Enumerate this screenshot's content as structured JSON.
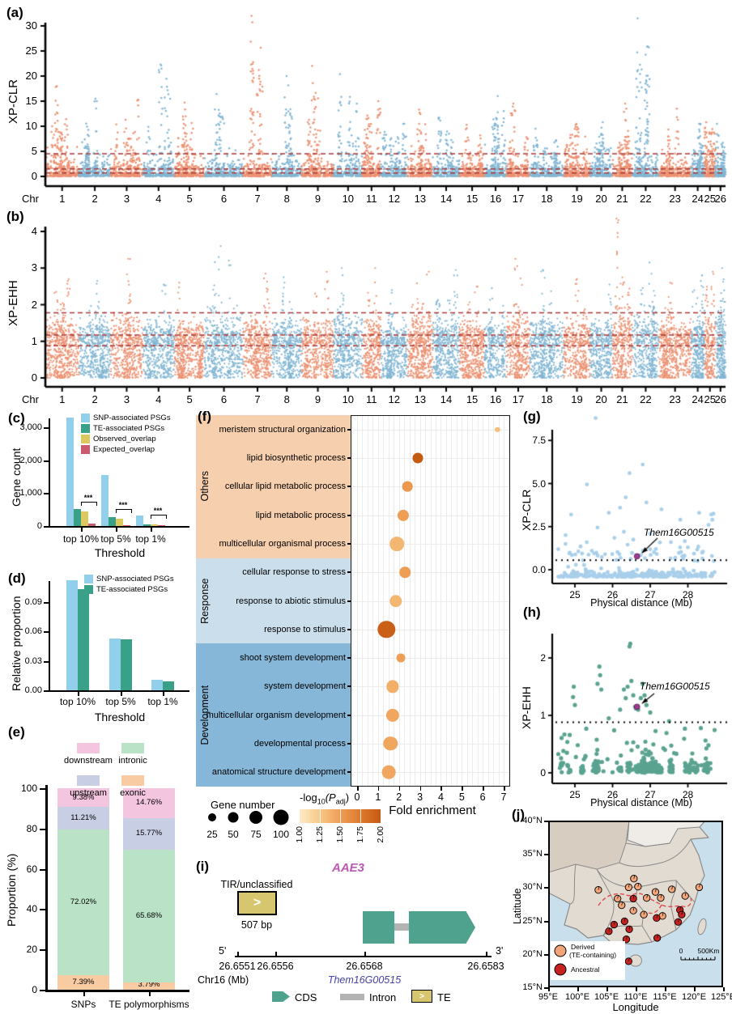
{
  "figure": {
    "panel_labels": {
      "a": "(a)",
      "b": "(b)",
      "c": "(c)",
      "d": "(d)",
      "e": "(e)",
      "f": "(f)",
      "g": "(g)",
      "h": "(h)",
      "i": "(i)",
      "j": "(j)"
    }
  },
  "chart_data": [
    {
      "id": "a",
      "type": "scatter",
      "subtype": "manhattan",
      "ylabel": "XP-CLR",
      "xlabel": "Chr",
      "yticks": [
        0,
        5,
        10,
        15,
        20,
        25,
        30
      ],
      "ylim": [
        0,
        33
      ],
      "chromosomes": [
        1,
        2,
        3,
        4,
        5,
        6,
        7,
        8,
        9,
        10,
        11,
        12,
        13,
        14,
        15,
        16,
        17,
        18,
        19,
        20,
        21,
        22,
        23,
        24,
        25,
        26
      ],
      "chrom_widths": [
        1.0,
        0.95,
        0.95,
        0.95,
        0.9,
        1.15,
        0.85,
        0.9,
        0.95,
        0.85,
        0.55,
        0.8,
        0.75,
        0.8,
        0.75,
        0.65,
        0.7,
        1.0,
        0.8,
        0.65,
        0.6,
        0.8,
        0.95,
        0.4,
        0.33,
        0.3
      ],
      "chrom_peaks": [
        18,
        15.5,
        15.3,
        22.3,
        14.7,
        16.4,
        32,
        20,
        22,
        20.4,
        15,
        10.5,
        13.3,
        11.7,
        10.3,
        16,
        14.5,
        9.5,
        10.5,
        10.8,
        14.5,
        31.5,
        13.5,
        10.5,
        10.8,
        10.5
      ],
      "thresholds": [
        4.5,
        1.5,
        0.7
      ],
      "threshold_color": "#A63737",
      "colors": {
        "odd": "#EC9272",
        "even": "#82B6D3"
      }
    },
    {
      "id": "b",
      "type": "scatter",
      "subtype": "manhattan",
      "ylabel": "XP-EHH",
      "xlabel": "Chr",
      "yticks": [
        0,
        1,
        2,
        3,
        4
      ],
      "ylim": [
        0,
        4.5
      ],
      "chromosomes": [
        1,
        2,
        3,
        4,
        5,
        6,
        7,
        8,
        9,
        10,
        11,
        12,
        13,
        14,
        15,
        16,
        17,
        18,
        19,
        20,
        21,
        22,
        23,
        24,
        25,
        26
      ],
      "chrom_widths": [
        1.0,
        0.95,
        0.95,
        0.95,
        0.9,
        1.15,
        0.85,
        0.9,
        0.95,
        0.85,
        0.55,
        0.8,
        0.75,
        0.8,
        0.75,
        0.65,
        0.7,
        1.0,
        0.8,
        0.65,
        0.6,
        0.8,
        0.95,
        0.4,
        0.33,
        0.3
      ],
      "chrom_peaks": [
        2.7,
        2.65,
        3.25,
        2.55,
        2.6,
        3.6,
        2.85,
        2.75,
        2.9,
        3.0,
        3.0,
        2.4,
        2.9,
        2.95,
        2.5,
        2.45,
        3.25,
        2.95,
        2.7,
        2.55,
        4.35,
        3.15,
        2.6,
        2.8,
        2.9,
        3.0
      ],
      "thresholds": [
        1.78,
        1.17,
        0.88
      ],
      "threshold_color": "#A63737",
      "colors": {
        "odd": "#EC9272",
        "even": "#82B6D3"
      }
    },
    {
      "id": "c",
      "type": "bar",
      "ylabel": "Gene count",
      "xlabel": "Threshold",
      "categories": [
        "top 10%",
        "top 5%",
        "top 1%"
      ],
      "yticks": [
        "0",
        "1,000",
        "2,000",
        "3,000"
      ],
      "ytick_values": [
        0,
        1000,
        2000,
        3000
      ],
      "ymax": 3400,
      "series": [
        {
          "name": "SNP-associated PSGs",
          "color": "#92CFEA",
          "values": [
            3300,
            1550,
            320
          ]
        },
        {
          "name": "TE-associated PSGs",
          "color": "#3AA189",
          "values": [
            510,
            270,
            55
          ]
        },
        {
          "name": "Observed_overlap",
          "color": "#DDC75F",
          "values": [
            450,
            220,
            50
          ]
        },
        {
          "name": "Expected_overlap",
          "color": "#CB5A6F",
          "values": [
            70,
            30,
            12
          ]
        }
      ],
      "significance": [
        "***",
        "***",
        "***"
      ]
    },
    {
      "id": "d",
      "type": "bar",
      "ylabel": "Relative proportion",
      "xlabel": "Threshold",
      "categories": [
        "top 10%",
        "top 5%",
        "top 1%"
      ],
      "yticks": [
        "0.00",
        "0.03",
        "0.06",
        "0.09"
      ],
      "ytick_values": [
        0,
        0.03,
        0.06,
        0.09
      ],
      "ymax": 0.118,
      "series": [
        {
          "name": "SNP-associated PSGs",
          "color": "#92CFEA",
          "values": [
            0.112,
            0.053,
            0.011
          ]
        },
        {
          "name": "TE-associated PSGs",
          "color": "#3AA189",
          "values": [
            0.103,
            0.052,
            0.009
          ]
        }
      ]
    },
    {
      "id": "e",
      "type": "bar",
      "stacked": true,
      "ylabel": "Proportion (%)",
      "categories": [
        "SNPs",
        "TE polymorphisms"
      ],
      "yticks": [
        0,
        20,
        40,
        60,
        80,
        100
      ],
      "series": [
        {
          "name": "exonic",
          "color": "#F8CBA2",
          "values": [
            7.39,
            3.79
          ]
        },
        {
          "name": "intronic",
          "color": "#BAE2C6",
          "values": [
            72.02,
            65.68
          ]
        },
        {
          "name": "upstream",
          "color": "#C8CEE3",
          "values": [
            11.21,
            15.77
          ]
        },
        {
          "name": "downstream",
          "color": "#F3C5DE",
          "values": [
            9.38,
            14.76
          ]
        }
      ],
      "legend_order": [
        "downstream",
        "intronic",
        "upstream",
        "exonic"
      ],
      "labels": [
        [
          "7.39%",
          "72.02%",
          "11.21%",
          "9.38%"
        ],
        [
          "3.79%",
          "65.68%",
          "15.77%",
          "14.76%"
        ]
      ]
    },
    {
      "id": "f",
      "type": "scatter",
      "subtype": "dotplot",
      "xlabel": "Fold enrichment",
      "xticks": [
        0,
        1,
        2,
        3,
        4,
        5,
        6,
        7
      ],
      "groups": [
        {
          "name": "Others",
          "color": "#F6CFAE",
          "rows": 5
        },
        {
          "name": "Response",
          "color": "#CBDEEB",
          "rows": 3
        },
        {
          "name": "Development",
          "color": "#87B7D8",
          "rows": 5
        }
      ],
      "terms": [
        {
          "label": "meristem structural organization",
          "fold": 6.7,
          "genes": 10,
          "logp": 1.3
        },
        {
          "label": "lipid biosynthetic process",
          "fold": 2.9,
          "genes": 42,
          "logp": 2.0
        },
        {
          "label": "cellular lipid metabolic process",
          "fold": 2.4,
          "genes": 40,
          "logp": 1.55
        },
        {
          "label": "lipid metabolic process",
          "fold": 2.2,
          "genes": 50,
          "logp": 1.5
        },
        {
          "label": "multicellular organismal process",
          "fold": 1.9,
          "genes": 78,
          "logp": 1.35
        },
        {
          "label": "cellular response to stress",
          "fold": 2.3,
          "genes": 46,
          "logp": 1.5
        },
        {
          "label": "response to abiotic stimulus",
          "fold": 1.85,
          "genes": 60,
          "logp": 1.35
        },
        {
          "label": "response to stimulus",
          "fold": 1.4,
          "genes": 115,
          "logp": 1.95
        },
        {
          "label": "shoot system development",
          "fold": 2.1,
          "genes": 30,
          "logp": 1.5
        },
        {
          "label": "system development",
          "fold": 1.7,
          "genes": 58,
          "logp": 1.4
        },
        {
          "label": "multicellular organism development",
          "fold": 1.7,
          "genes": 66,
          "logp": 1.45
        },
        {
          "label": "developmental process",
          "fold": 1.6,
          "genes": 76,
          "logp": 1.45
        },
        {
          "label": "anatomical structure development",
          "fold": 1.5,
          "genes": 70,
          "logp": 1.45
        }
      ],
      "size_legend": {
        "title": "Gene number",
        "values": [
          25,
          50,
          75,
          100
        ]
      },
      "color_legend": {
        "title_parts": {
          "prefix": "-log",
          "sub": "10",
          "mid": "(P",
          "sub2": "adj",
          "suffix": ")"
        },
        "ticks": [
          "1.00",
          "1.25",
          "1.50",
          "1.75",
          "2.00"
        ],
        "gradient": [
          "#FDEBC9",
          "#F7C886",
          "#EE9E55",
          "#DD7A2E",
          "#C55A11"
        ]
      }
    },
    {
      "id": "g",
      "type": "scatter",
      "ylabel": "XP-CLR",
      "xlabel": "Physical distance (Mb)",
      "xticks": [
        25,
        26,
        27,
        28
      ],
      "yticks": [
        "0.0",
        "2.5",
        "5.0",
        "7.5"
      ],
      "ytick_values": [
        0,
        2.5,
        5,
        7.5
      ],
      "xlim": [
        24.55,
        28.75
      ],
      "threshold": 0.55,
      "color": "#A9CFEA",
      "highlight": {
        "label": "Them16G00515",
        "x": 26.65,
        "y": 0.78,
        "color": "#A13A93"
      },
      "outliers": [
        [
          25.55,
          8.8
        ],
        [
          26.8,
          6.1
        ],
        [
          26.45,
          5.6
        ],
        [
          25.32,
          4.95
        ],
        [
          26.35,
          4.2
        ],
        [
          26.2,
          3.6
        ],
        [
          26.9,
          3.9
        ],
        [
          25.9,
          3.3
        ],
        [
          24.9,
          3.2
        ],
        [
          27.3,
          3.5
        ],
        [
          28.3,
          3.3
        ],
        [
          28.62,
          3.2
        ],
        [
          28.55,
          2.6
        ],
        [
          27.8,
          2.9
        ],
        [
          25.6,
          2.45
        ],
        [
          26.3,
          2.2
        ],
        [
          27.0,
          2.1
        ],
        [
          26.05,
          1.85
        ],
        [
          26.55,
          1.75
        ],
        [
          27.55,
          1.6
        ],
        [
          24.75,
          1.5
        ],
        [
          25.15,
          1.35
        ],
        [
          26.4,
          1.45
        ],
        [
          28.0,
          1.3
        ],
        [
          27.15,
          1.2
        ],
        [
          25.45,
          1.1
        ],
        [
          28.4,
          1.05
        ],
        [
          24.85,
          0.95
        ],
        [
          25.8,
          0.9
        ],
        [
          26.75,
          0.85
        ],
        [
          27.9,
          0.8
        ],
        [
          28.65,
          2.9
        ],
        [
          28.68,
          3.25
        ]
      ]
    },
    {
      "id": "h",
      "type": "scatter",
      "ylabel": "XP-EHH",
      "xlabel": "Physical distance (Mb)",
      "xticks": [
        25,
        26,
        27,
        28
      ],
      "yticks": [
        "0",
        "1",
        "2"
      ],
      "ytick_values": [
        0,
        1,
        2
      ],
      "xlim": [
        24.55,
        28.75
      ],
      "threshold": 0.88,
      "color": "#5BA391",
      "highlight": {
        "label": "Them16G00515",
        "x": 26.65,
        "y": 1.15,
        "color": "#A13A93"
      },
      "high_points": [
        [
          24.95,
          1.32
        ],
        [
          24.97,
          1.5
        ],
        [
          25.0,
          1.18
        ],
        [
          25.6,
          1.55
        ],
        [
          25.65,
          1.85
        ],
        [
          25.67,
          1.7
        ],
        [
          25.7,
          1.45
        ],
        [
          26.3,
          1.45
        ],
        [
          26.35,
          1.3
        ],
        [
          26.4,
          1.5
        ],
        [
          26.45,
          2.2
        ],
        [
          26.47,
          2.25
        ],
        [
          26.5,
          1.6
        ],
        [
          26.55,
          1.35
        ],
        [
          26.6,
          1.15
        ],
        [
          26.62,
          1.12
        ],
        [
          26.68,
          1.1
        ],
        [
          26.75,
          1.3
        ],
        [
          26.8,
          1.55
        ],
        [
          26.85,
          1.35
        ],
        [
          26.9,
          1.18
        ],
        [
          27.0,
          1.05
        ],
        [
          26.2,
          1.1
        ],
        [
          25.9,
          0.95
        ],
        [
          27.5,
          0.9
        ]
      ]
    },
    {
      "id": "i",
      "type": "gene-model",
      "gene": "AAE3",
      "gene_id": "Them16G00515",
      "te_label": "TIR/unclassified",
      "te_size": "507 bp",
      "te_arrow": ">",
      "axis": {
        "start_label": "5'",
        "end_label": "3'",
        "ticks": [
          "26.6551",
          "26.6556",
          "26.6568",
          "26.6583"
        ],
        "chrom": "Chr16 (Mb)"
      },
      "legend": [
        {
          "label": "CDS"
        },
        {
          "label": "Intron"
        },
        {
          "label": "TE"
        }
      ],
      "colors": {
        "cds": "#4EA28E",
        "intron": "#B3B3B3",
        "te": "#D6C76F",
        "gene_name": "#BC58B2",
        "gene_id_color": "#4343A8"
      }
    },
    {
      "id": "j",
      "type": "map",
      "xlabel": "Longitude",
      "ylabel": "Latitude",
      "lon_ticks": [
        "95°E",
        "100°E",
        "105°E",
        "110°E",
        "115°E",
        "120°E",
        "125°E"
      ],
      "lon_values": [
        95,
        100,
        105,
        110,
        115,
        120,
        125
      ],
      "lat_ticks": [
        "15°N",
        "20°N",
        "25°N",
        "30°N",
        "35°N",
        "40°N"
      ],
      "lat_values": [
        15,
        20,
        25,
        30,
        35,
        40
      ],
      "legend": [
        {
          "label": "Derived",
          "label2": "(TE-containing)",
          "color": "#F2A579"
        },
        {
          "label": "Ancestral",
          "color": "#C62320"
        }
      ],
      "scale": {
        "zero": "0",
        "label": "500Km"
      },
      "points": [
        {
          "lon": 103.6,
          "lat": 29.6,
          "type": "derived"
        },
        {
          "lon": 109.7,
          "lat": 31.3,
          "type": "derived"
        },
        {
          "lon": 108.8,
          "lat": 30.0,
          "type": "derived"
        },
        {
          "lon": 110.4,
          "lat": 30.1,
          "type": "derived"
        },
        {
          "lon": 113.4,
          "lat": 29.3,
          "type": "derived"
        },
        {
          "lon": 116.2,
          "lat": 29.7,
          "type": "derived"
        },
        {
          "lon": 120.9,
          "lat": 30.0,
          "type": "derived"
        },
        {
          "lon": 106.9,
          "lat": 28.3,
          "type": "derived"
        },
        {
          "lon": 111.9,
          "lat": 28.4,
          "type": "derived"
        },
        {
          "lon": 114.3,
          "lat": 28.4,
          "type": "derived"
        },
        {
          "lon": 107.6,
          "lat": 27.3,
          "type": "derived"
        },
        {
          "lon": 109.6,
          "lat": 26.5,
          "type": "derived"
        },
        {
          "lon": 111.4,
          "lat": 25.9,
          "type": "derived"
        },
        {
          "lon": 114.6,
          "lat": 25.7,
          "type": "derived"
        },
        {
          "lon": 118.5,
          "lat": 28.7,
          "type": "derived"
        },
        {
          "lon": 109.6,
          "lat": 28.3,
          "type": "ancestral"
        },
        {
          "lon": 117.6,
          "lat": 26.6,
          "type": "ancestral"
        },
        {
          "lon": 117.9,
          "lat": 25.9,
          "type": "ancestral"
        },
        {
          "lon": 113.6,
          "lat": 25.4,
          "type": "ancestral"
        },
        {
          "lon": 108.1,
          "lat": 24.9,
          "type": "ancestral"
        },
        {
          "lon": 106.3,
          "lat": 24.4,
          "type": "ancestral"
        },
        {
          "lon": 108.9,
          "lat": 23.7,
          "type": "ancestral"
        },
        {
          "lon": 105.4,
          "lat": 23.4,
          "type": "ancestral"
        },
        {
          "lon": 108.4,
          "lat": 22.2,
          "type": "ancestral"
        },
        {
          "lon": 113.7,
          "lat": 22.4,
          "type": "ancestral"
        },
        {
          "lon": 117.3,
          "lat": 24.8,
          "type": "ancestral"
        },
        {
          "lon": 108.8,
          "lat": 18.9,
          "type": "ancestral"
        }
      ]
    }
  ]
}
